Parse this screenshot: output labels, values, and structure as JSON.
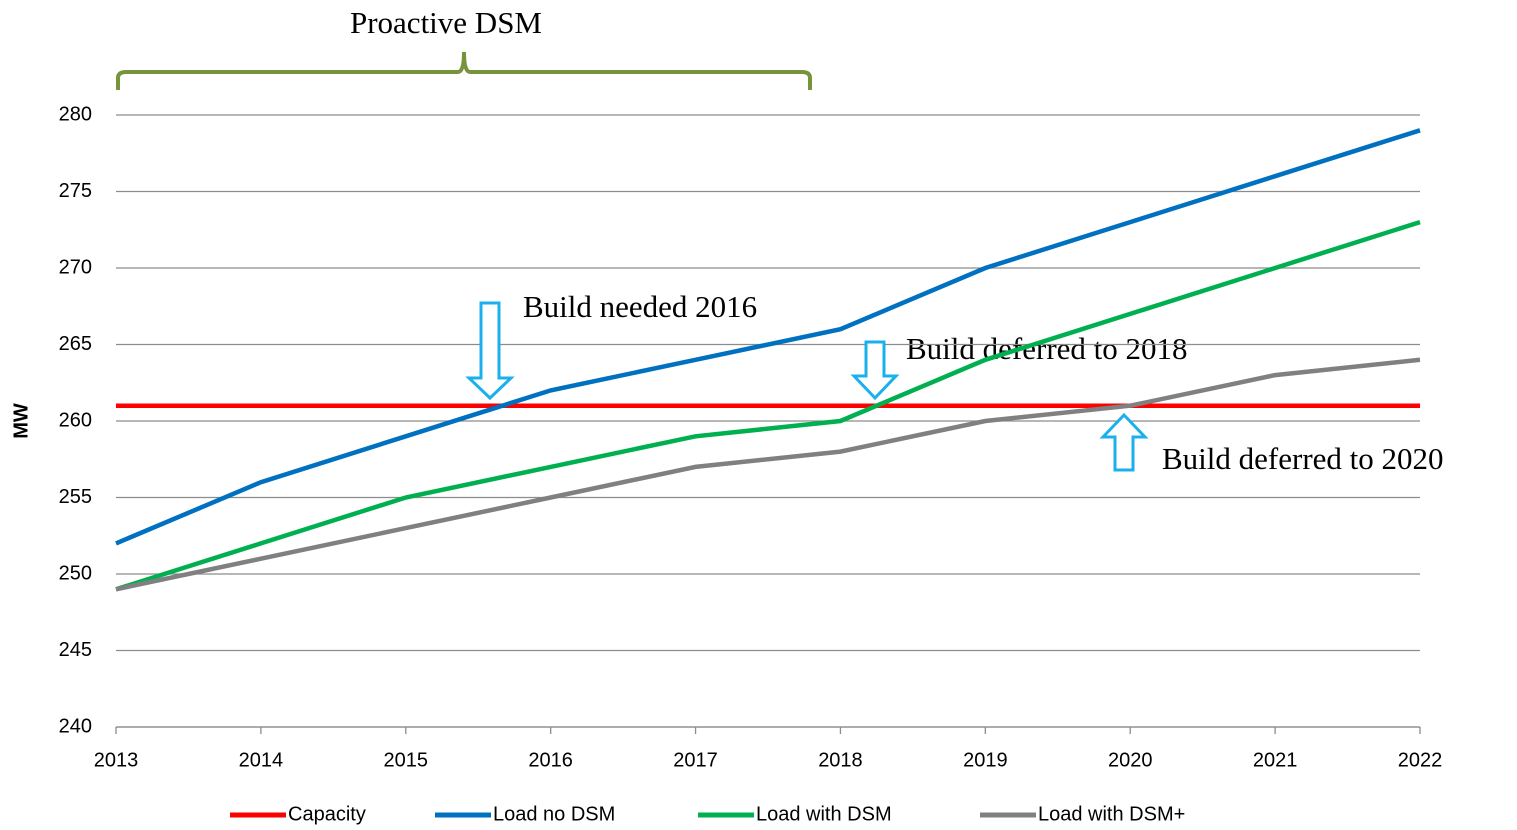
{
  "chart_data": {
    "type": "line",
    "y_label": "MW",
    "categories": [
      "2013",
      "2014",
      "2015",
      "2016",
      "2017",
      "2018",
      "2019",
      "2020",
      "2021",
      "2022"
    ],
    "series": [
      {
        "name": "Capacity",
        "color": "#ff0000",
        "values": [
          261,
          261,
          261,
          261,
          261,
          261,
          261,
          261,
          261,
          261
        ]
      },
      {
        "name": "Load no DSM",
        "color": "#0070c0",
        "values": [
          252,
          256,
          259,
          262,
          264,
          266,
          270,
          273,
          276,
          279
        ]
      },
      {
        "name": "Load with DSM",
        "color": "#00b050",
        "values": [
          249,
          252,
          255,
          257,
          259,
          260,
          264,
          267,
          270,
          273
        ]
      },
      {
        "name": "Load with DSM+",
        "color": "#808080",
        "values": [
          249,
          251,
          253,
          255,
          257,
          258,
          260,
          261,
          263,
          264
        ]
      }
    ],
    "ylim": [
      240,
      280
    ],
    "yticks": [
      240,
      245,
      250,
      255,
      260,
      265,
      270,
      275,
      280
    ],
    "grid": true,
    "legend": "bottom",
    "annotations": [
      "Proactive DSM",
      "Build needed 2016",
      "Build deferred to 2018",
      "Build deferred to 2020"
    ]
  }
}
